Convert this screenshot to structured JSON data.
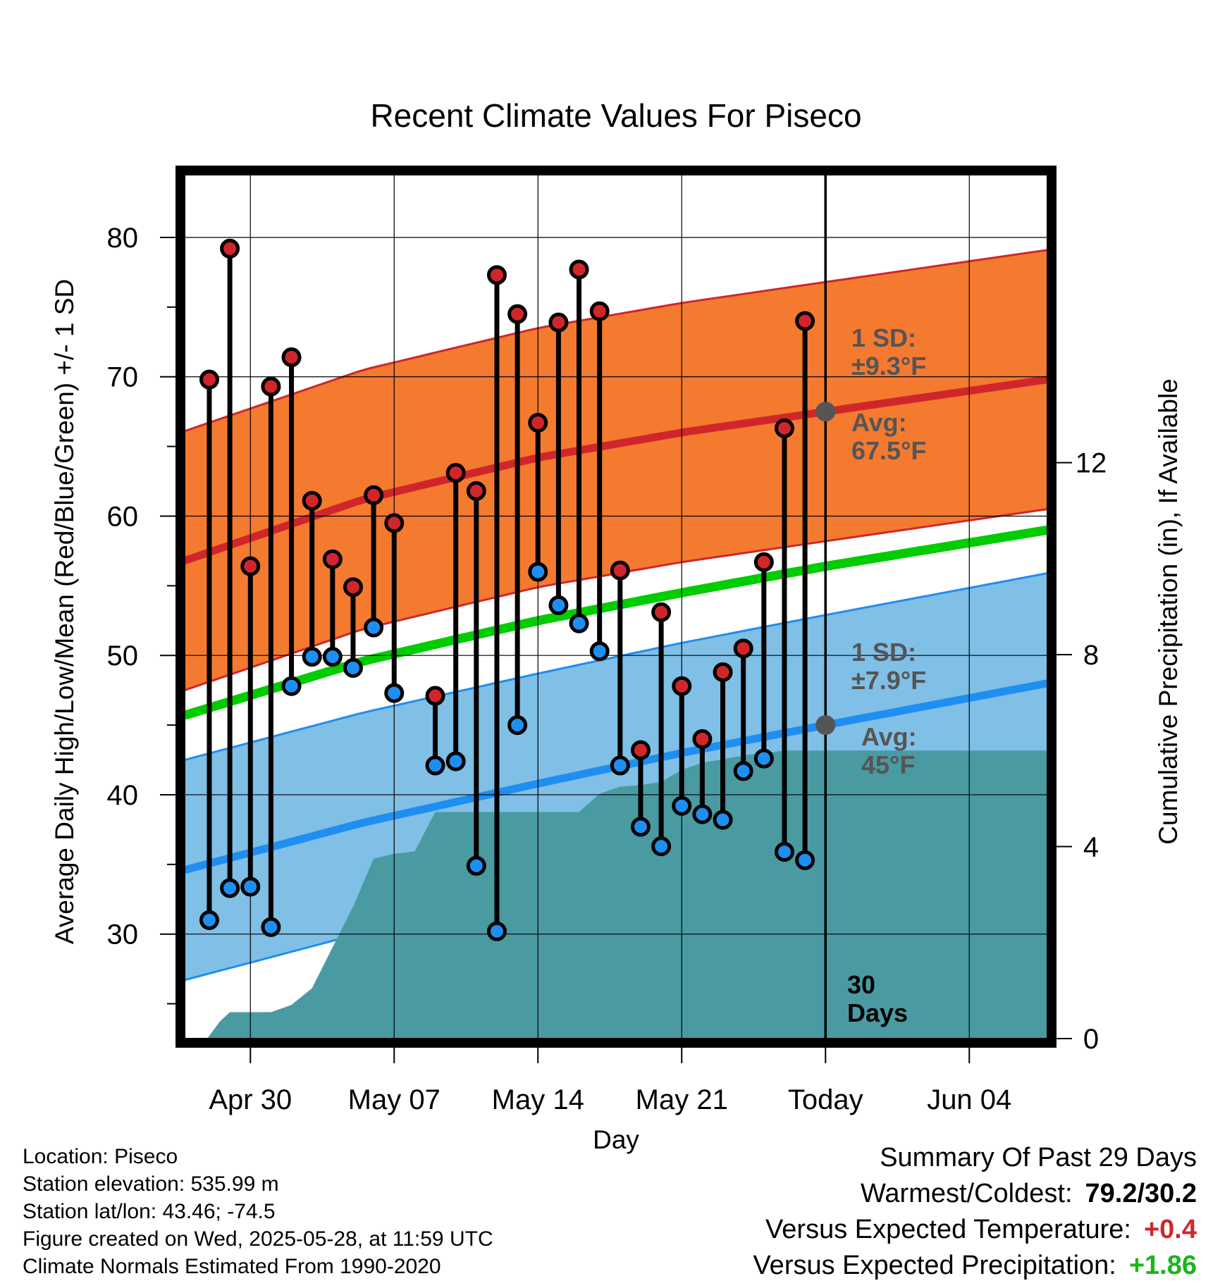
{
  "chart_data": {
    "type": "line",
    "title": "Recent Climate Values For Piseco",
    "xlabel": "Day",
    "ylabel": "Average Daily High/Low/Mean (Red/Blue/Green) +/- 1 SD",
    "y2label": "Cumulative Precipitation (in), If Available",
    "ylim": [
      22.5,
      84.5
    ],
    "y2lim": [
      0,
      18
    ],
    "y_ticks": [
      "30",
      "40",
      "50",
      "60",
      "70",
      "80"
    ],
    "y2_ticks": [
      "0",
      "4",
      "8",
      "12"
    ],
    "x_ticks": [
      "Apr 30",
      "May 07",
      "May 14",
      "May 21",
      "Today",
      "Jun 04"
    ],
    "x_tick_days": [
      2,
      9,
      16,
      23,
      30,
      37
    ],
    "xlim": [
      -1.2,
      40.8
    ],
    "grid": true,
    "observed": {
      "day": [
        0,
        1,
        2,
        3,
        4,
        5,
        6,
        7,
        8,
        9,
        11,
        12,
        13,
        14,
        15,
        16,
        17,
        18,
        19,
        20,
        21,
        22,
        23,
        24,
        25,
        26,
        27,
        28,
        29
      ],
      "high": [
        69.8,
        79.2,
        56.4,
        69.3,
        71.4,
        61.1,
        56.9,
        54.9,
        61.5,
        59.5,
        47.1,
        63.1,
        61.8,
        77.3,
        74.5,
        66.7,
        73.9,
        77.7,
        74.7,
        56.1,
        43.2,
        53.1,
        47.8,
        44.0,
        48.8,
        50.5,
        56.7,
        66.3,
        74.0
      ],
      "low": [
        31.0,
        33.3,
        33.4,
        30.5,
        47.8,
        49.9,
        49.9,
        49.1,
        52.0,
        47.3,
        42.1,
        42.4,
        34.9,
        30.2,
        45.0,
        56.0,
        53.6,
        52.3,
        50.3,
        42.1,
        37.7,
        36.3,
        39.2,
        38.6,
        38.2,
        41.7,
        42.6,
        35.9,
        35.3
      ]
    },
    "normal_high": {
      "day": [
        -1.2,
        7.5,
        16,
        23,
        30,
        40.8
      ],
      "values": [
        56.8,
        61.2,
        64.2,
        66.0,
        67.5,
        69.8
      ]
    },
    "normal_high_sd": 9.3,
    "normal_low": {
      "day": [
        -1.2,
        7.5,
        16,
        23,
        30,
        40.8
      ],
      "values": [
        34.6,
        38.0,
        40.8,
        43.0,
        45.0,
        48.0
      ]
    },
    "normal_low_sd": 7.9,
    "normal_mean": {
      "day": [
        -1.2,
        7.5,
        16,
        23,
        30,
        40.8
      ],
      "values": [
        45.7,
        49.6,
        52.5,
        54.5,
        56.4,
        59.0
      ]
    },
    "precip": {
      "day": [
        -1.2,
        -0.1,
        0.5,
        1,
        2,
        3,
        4,
        5,
        6,
        7,
        8,
        9,
        10,
        11,
        12,
        13,
        14,
        15,
        16,
        17,
        18,
        19,
        20,
        21,
        22,
        23,
        24,
        25,
        26,
        27,
        28,
        29,
        30,
        40.8
      ],
      "values": [
        0,
        0,
        0.35,
        0.55,
        0.55,
        0.55,
        0.7,
        1.05,
        1.9,
        2.75,
        3.75,
        3.85,
        3.9,
        4.72,
        4.72,
        4.72,
        4.72,
        4.72,
        4.72,
        4.72,
        4.72,
        5.1,
        5.25,
        5.28,
        5.35,
        5.6,
        5.75,
        5.82,
        5.9,
        5.95,
        6.0,
        6.0,
        6.0,
        6.0
      ]
    },
    "annotations": {
      "high_sd": [
        "1 SD:",
        "±9.3°F"
      ],
      "high_avg": [
        "Avg:",
        "67.5°F"
      ],
      "low_sd": [
        "1 SD:",
        "±7.9°F"
      ],
      "low_avg": [
        "Avg:",
        "45°F"
      ],
      "window": [
        "30",
        "Days"
      ]
    },
    "colors": {
      "high_band": "#f47a2f",
      "high_line": "#d0262b",
      "low_band": "#80bfe6",
      "low_line": "#1f8ef1",
      "mean_line": "#00cc00",
      "precip": "#4a9aa2",
      "high_marker": "#d0262b",
      "low_marker": "#1f8ef1",
      "today_marker": "#555555"
    }
  },
  "footer": {
    "location": "Location: Piseco",
    "elevation": "Station elevation: 535.99 m",
    "latlon": "Station lat/lon: 43.46; -74.5",
    "created": "Figure created on Wed, 2025-05-28, at 11:59 UTC",
    "normals": "Climate Normals Estimated From 1990-2020"
  },
  "summary": {
    "heading": "Summary Of Past 29 Days",
    "warm_cold_label": "Warmest/Coldest:",
    "warm_cold_value": "79.2/30.2",
    "temp_label": "Versus Expected Temperature:",
    "temp_value": "+0.4",
    "temp_color": "#d0262b",
    "precip_label": "Versus Expected Precipitation:",
    "precip_value": "+1.86",
    "precip_color": "#1ab51a"
  }
}
